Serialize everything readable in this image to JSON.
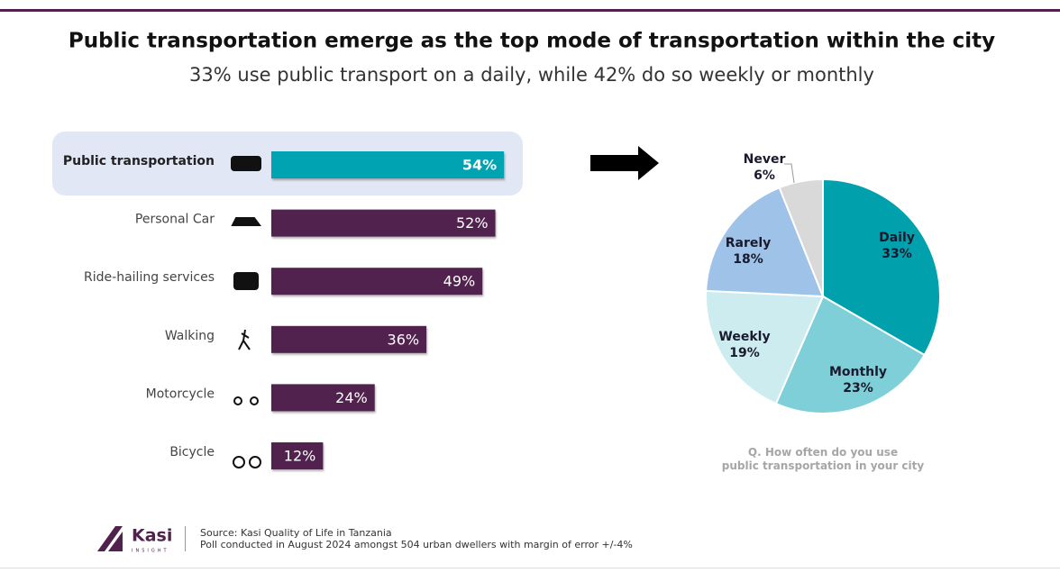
{
  "title": "Public transportation emerge as the top mode of transportation within the city",
  "subtitle": "33% use public transport on a daily, while 42% do so weekly or monthly",
  "chart_data": [
    {
      "type": "hbar",
      "categories": [
        "Public transportation",
        "Personal Car",
        "Ride-hailing services",
        "Walking",
        "Motorcycle",
        "Bicycle"
      ],
      "values": [
        54,
        52,
        49,
        36,
        24,
        12
      ],
      "value_labels": [
        "54%",
        "52%",
        "49%",
        "36%",
        "24%",
        "12%"
      ],
      "colors": [
        "#00a3b1",
        "#52224f",
        "#52224f",
        "#52224f",
        "#52224f",
        "#52224f"
      ],
      "highlight": 0
    },
    {
      "type": "pie",
      "categories": [
        "Daily",
        "Monthly",
        "Weekly",
        "Rarely",
        "Never"
      ],
      "values": [
        33,
        23,
        19,
        18,
        6
      ],
      "value_labels": [
        "33%",
        "23%",
        "19%",
        "18%",
        "6%"
      ],
      "colors": [
        "#00a0ad",
        "#7ecfd8",
        "#cdecf0",
        "#9fc3e8",
        "#d9d9d9"
      ],
      "note": "Q. How often do you use public transportation in your city"
    }
  ],
  "logo": {
    "name": "Kasi",
    "tagline": "INSIGHT"
  },
  "source": [
    "Source: Kasi Quality of Life in Tanzania",
    "Poll conducted in August 2024 amongst 504 urban dwellers with margin of error +/-4%"
  ]
}
